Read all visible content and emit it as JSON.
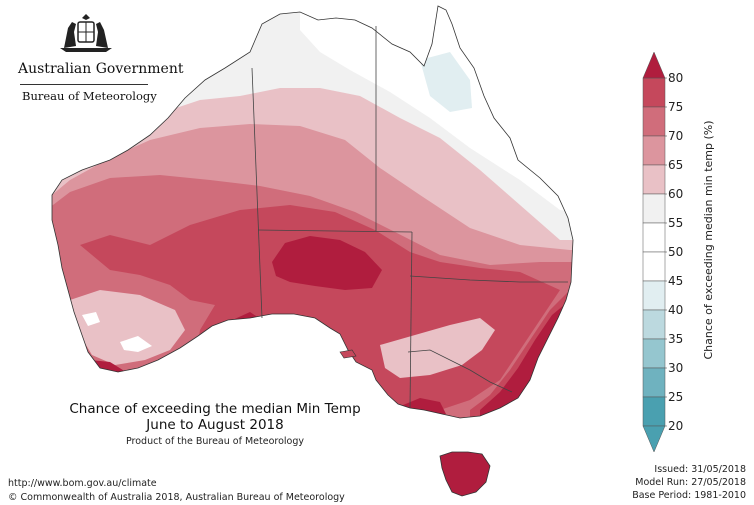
{
  "header": {
    "organisation": "Australian Government",
    "agency": "Bureau of Meteorology"
  },
  "map": {
    "title_line1": "Chance of exceeding the median Min Temp",
    "title_line2": "June to August 2018",
    "subtitle": "Product of the Bureau of Meteorology"
  },
  "legend": {
    "label": "Chance of exceeding median min temp (%)",
    "ticks": [
      "80",
      "75",
      "70",
      "65",
      "60",
      "55",
      "50",
      "45",
      "40",
      "35",
      "30",
      "25",
      "20"
    ],
    "colors": [
      "#b01d3e",
      "#c5485c",
      "#d06d7b",
      "#dc959e",
      "#e9c1c6",
      "#f1f1f1",
      "#ffffff",
      "#ffffff",
      "#e1eef1",
      "#bcd9df",
      "#95c6cf",
      "#6fb2bf",
      "#4aa0b0"
    ]
  },
  "footer": {
    "url": "http://www.bom.gov.au/climate",
    "copyright": "© Commonwealth of Australia 2018, Australian Bureau of Meteorology",
    "issued": "Issued: 31/05/2018",
    "model_run": "Model Run: 27/05/2018",
    "base_period": "Base Period: 1981-2010"
  }
}
